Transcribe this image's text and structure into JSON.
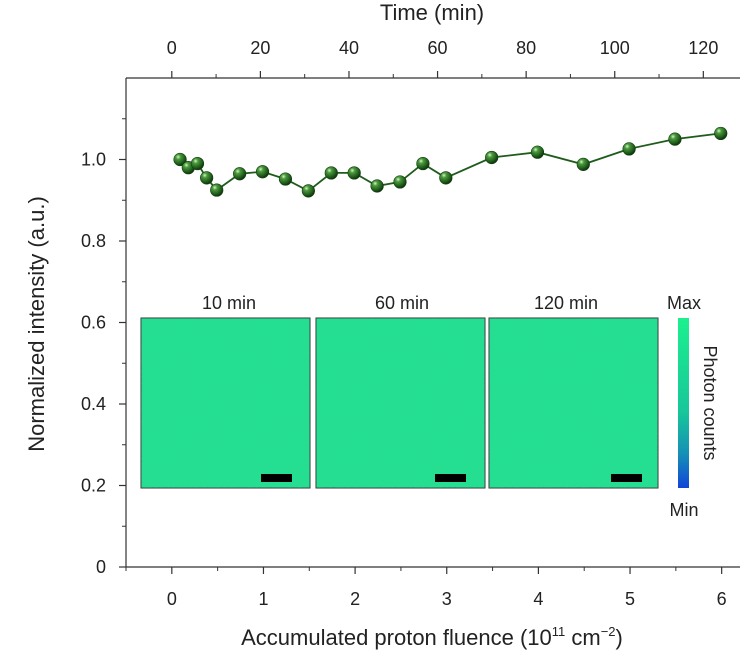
{
  "chart_data": {
    "type": "scatter",
    "xlabel_top": "Time (min)",
    "xlabel_bottom_text": "Accumulated proton fluence (10",
    "xlabel_bottom_sup1": "11",
    "xlabel_bottom_unit": " cm",
    "xlabel_bottom_sup2": "−2",
    "xlabel_bottom_close": ")",
    "ylabel": "Normalized intensity (a.u.)",
    "xlim": [
      -0.5,
      6.2
    ],
    "ylim": [
      0,
      1.2
    ],
    "top_xlim": [
      -10.34,
      128.28
    ],
    "bottom_ticks": [
      "0",
      "1",
      "2",
      "3",
      "4",
      "5",
      "6"
    ],
    "top_ticks": [
      "0",
      "20",
      "40",
      "60",
      "80",
      "100",
      "120"
    ],
    "y_ticks": [
      {
        "v": 0,
        "label": "0"
      },
      {
        "v": 0.2,
        "label": "0.2"
      },
      {
        "v": 0.4,
        "label": "0.4"
      },
      {
        "v": 0.6,
        "label": "0.6"
      },
      {
        "v": 0.8,
        "label": "0.8"
      },
      {
        "v": 1.0,
        "label": "1.0"
      }
    ],
    "series": [
      {
        "color": "#1f5c1b",
        "points": [
          [
            0.09,
            1.0
          ],
          [
            0.18,
            0.98
          ],
          [
            0.28,
            0.99
          ],
          [
            0.38,
            0.955
          ],
          [
            0.49,
            0.925
          ],
          [
            0.74,
            0.965
          ],
          [
            0.99,
            0.97
          ],
          [
            1.24,
            0.952
          ],
          [
            1.49,
            0.923
          ],
          [
            1.74,
            0.967
          ],
          [
            1.99,
            0.967
          ],
          [
            2.24,
            0.935
          ],
          [
            2.49,
            0.945
          ],
          [
            2.74,
            0.99
          ],
          [
            2.99,
            0.955
          ],
          [
            3.49,
            1.005
          ],
          [
            3.99,
            1.018
          ],
          [
            4.49,
            0.988
          ],
          [
            4.99,
            1.026
          ],
          [
            5.49,
            1.05
          ],
          [
            5.99,
            1.064
          ]
        ]
      }
    ],
    "insets": {
      "panels": [
        {
          "title": "10 min"
        },
        {
          "title": "60 min"
        },
        {
          "title": "120 min"
        }
      ],
      "fill_color": "#1fe48a",
      "colorbar": {
        "label": "Photon counts",
        "max_label": "Max",
        "min_label": "Min",
        "top_color": "#1cf08e",
        "bottom_color": "#1144d8"
      }
    }
  }
}
